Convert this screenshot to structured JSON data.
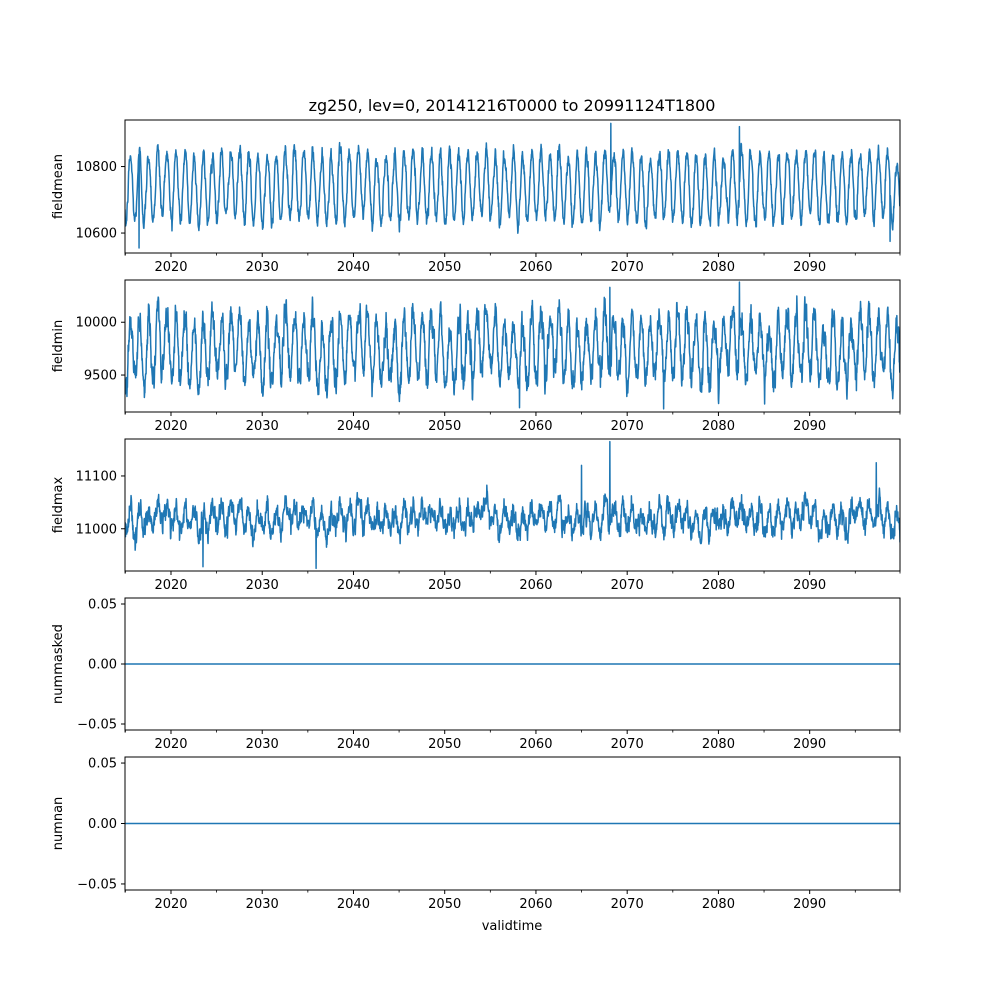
{
  "figure": {
    "title": "zg250, lev=0, 20141216T0000 to 20991124T1800",
    "xlabel": "validtime",
    "line_color": "#1f77b4"
  },
  "chart_data": [
    {
      "type": "line",
      "ylabel": "fieldmean",
      "xlim": [
        2014.96,
        2099.9
      ],
      "ylim": [
        10540,
        10940
      ],
      "yticks": [
        10600,
        10800
      ],
      "ytick_labels": [
        "10600",
        "10800"
      ],
      "xticks": [
        2020,
        2030,
        2040,
        2050,
        2060,
        2070,
        2080,
        2090
      ],
      "xtick_labels": [
        "2020",
        "2030",
        "2040",
        "2050",
        "2060",
        "2070",
        "2080",
        "2090"
      ],
      "series": [
        {
          "x_start": 2014.96,
          "x_end": 2099.9,
          "seasonal_mean": 10740,
          "seasonal_amplitude": 100,
          "noise": 25,
          "extremes": [
            [
              2016.5,
              10555
            ],
            [
              2068.2,
              10930
            ],
            [
              2082.3,
              10920
            ],
            [
              2098.8,
              10575
            ]
          ]
        }
      ]
    },
    {
      "type": "line",
      "ylabel": "fieldmin",
      "xlim": [
        2014.96,
        2099.9
      ],
      "ylim": [
        9150,
        10400
      ],
      "yticks": [
        9500,
        10000
      ],
      "ytick_labels": [
        "9500",
        "10000"
      ],
      "xticks": [
        2020,
        2030,
        2040,
        2050,
        2060,
        2070,
        2080,
        2090
      ],
      "xtick_labels": [
        "2020",
        "2030",
        "2040",
        "2050",
        "2060",
        "2070",
        "2080",
        "2090"
      ],
      "series": [
        {
          "x_start": 2014.96,
          "x_end": 2099.9,
          "seasonal_mean": 9750,
          "seasonal_amplitude": 300,
          "noise": 150,
          "extremes": [
            [
              2074.0,
              9180
            ],
            [
              2082.3,
              10380
            ],
            [
              2068.1,
              10330
            ],
            [
              2058.2,
              9190
            ]
          ]
        }
      ]
    },
    {
      "type": "line",
      "ylabel": "fieldmax",
      "xlim": [
        2014.96,
        2099.9
      ],
      "ylim": [
        10920,
        11170
      ],
      "yticks": [
        11000,
        11100
      ],
      "ytick_labels": [
        "11000",
        "11100"
      ],
      "xticks": [
        2020,
        2030,
        2040,
        2050,
        2060,
        2070,
        2080,
        2090
      ],
      "xtick_labels": [
        "2020",
        "2030",
        "2040",
        "2050",
        "2060",
        "2070",
        "2080",
        "2090"
      ],
      "series": [
        {
          "x_start": 2014.96,
          "x_end": 2099.9,
          "seasonal_mean": 11020,
          "seasonal_amplitude": 20,
          "noise": 22,
          "extremes": [
            [
              2068.1,
              11165
            ],
            [
              2065.0,
              11120
            ],
            [
              2097.3,
              11125
            ],
            [
              2023.5,
              10928
            ],
            [
              2035.9,
              10925
            ]
          ]
        }
      ]
    },
    {
      "type": "line",
      "ylabel": "nummasked",
      "xlim": [
        2014.96,
        2099.9
      ],
      "ylim": [
        -0.055,
        0.055
      ],
      "yticks": [
        -0.05,
        0.0,
        0.05
      ],
      "ytick_labels": [
        "−0.05",
        "0.00",
        "0.05"
      ],
      "xticks": [
        2020,
        2030,
        2040,
        2050,
        2060,
        2070,
        2080,
        2090
      ],
      "xtick_labels": [
        "2020",
        "2030",
        "2040",
        "2050",
        "2060",
        "2070",
        "2080",
        "2090"
      ],
      "series": [
        {
          "x": [
            2014.96,
            2099.9
          ],
          "y": [
            0,
            0
          ]
        }
      ]
    },
    {
      "type": "line",
      "ylabel": "numnan",
      "xlim": [
        2014.96,
        2099.9
      ],
      "ylim": [
        -0.055,
        0.055
      ],
      "yticks": [
        -0.05,
        0.0,
        0.05
      ],
      "ytick_labels": [
        "−0.05",
        "0.00",
        "0.05"
      ],
      "xticks": [
        2020,
        2030,
        2040,
        2050,
        2060,
        2070,
        2080,
        2090
      ],
      "xtick_labels": [
        "2020",
        "2030",
        "2040",
        "2050",
        "2060",
        "2070",
        "2080",
        "2090"
      ],
      "series": [
        {
          "x": [
            2014.96,
            2099.9
          ],
          "y": [
            0,
            0
          ]
        }
      ]
    }
  ]
}
